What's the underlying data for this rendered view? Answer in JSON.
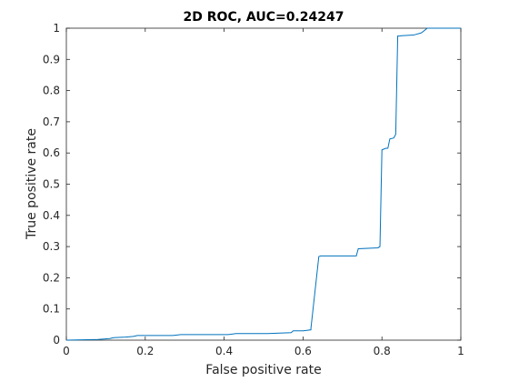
{
  "chart_data": {
    "type": "line",
    "title": "2D ROC, AUC=0.24247",
    "xlabel": "False positive rate",
    "ylabel": "True positive rate",
    "xlim": [
      0,
      1
    ],
    "ylim": [
      0,
      1
    ],
    "xticks": [
      0,
      0.2,
      0.4,
      0.6,
      0.8,
      1
    ],
    "xtick_labels": [
      "0",
      "0.2",
      "0.4",
      "0.6",
      "0.8",
      "1"
    ],
    "yticks": [
      0,
      0.1,
      0.2,
      0.3,
      0.4,
      0.5,
      0.6,
      0.7,
      0.8,
      0.9,
      1
    ],
    "ytick_labels": [
      "0",
      "0.1",
      "0.2",
      "0.3",
      "0.4",
      "0.5",
      "0.6",
      "0.7",
      "0.8",
      "0.9",
      "1"
    ],
    "grid": false,
    "line_color": "#0072bd",
    "series": [
      {
        "x": [
          0,
          0.08,
          0.11,
          0.12,
          0.15,
          0.17,
          0.18,
          0.27,
          0.29,
          0.41,
          0.43,
          0.51,
          0.57,
          0.575,
          0.6,
          0.62,
          0.62,
          0.64,
          0.645,
          0.735,
          0.74,
          0.79,
          0.795,
          0.8,
          0.81,
          0.815,
          0.82,
          0.83,
          0.835,
          0.84,
          0.845,
          0.85,
          0.88,
          0.9,
          0.91,
          0.915,
          1
        ],
        "y": [
          0,
          0.002,
          0.005,
          0.008,
          0.01,
          0.012,
          0.015,
          0.015,
          0.018,
          0.018,
          0.021,
          0.021,
          0.024,
          0.03,
          0.03,
          0.033,
          0.038,
          0.268,
          0.27,
          0.27,
          0.293,
          0.296,
          0.3,
          0.61,
          0.615,
          0.615,
          0.645,
          0.648,
          0.66,
          0.975,
          0.975,
          0.976,
          0.978,
          0.985,
          0.995,
          1.0,
          1.0
        ]
      }
    ]
  }
}
